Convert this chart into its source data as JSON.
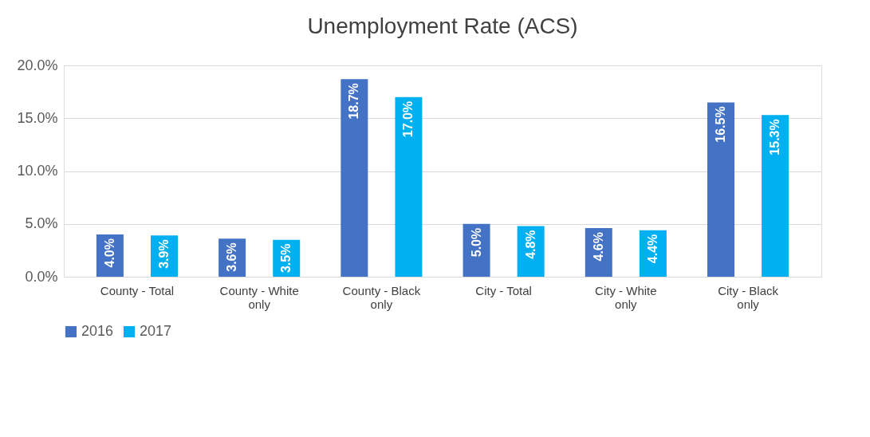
{
  "chart_data": {
    "type": "bar",
    "title": "Unemployment Rate (ACS)",
    "categories": [
      "County - Total",
      "County - White only",
      "County - Black only",
      "City - Total",
      "City - White only",
      "City - Black only"
    ],
    "series": [
      {
        "name": "2016",
        "color": "#4472c4",
        "values": [
          4.0,
          3.6,
          18.7,
          5.0,
          4.6,
          16.5
        ],
        "value_labels": [
          "4.0%",
          "3.6%",
          "18.7%",
          "5.0%",
          "4.6%",
          "16.5%"
        ]
      },
      {
        "name": "2017",
        "color": "#00b0f0",
        "values": [
          3.9,
          3.5,
          17.0,
          4.8,
          4.4,
          15.3
        ],
        "value_labels": [
          "3.9%",
          "3.5%",
          "17.0%",
          "4.8%",
          "4.4%",
          "15.3%"
        ]
      }
    ],
    "ylim": [
      0,
      20
    ],
    "yticks": [
      {
        "value": 0,
        "label": "0.0%"
      },
      {
        "value": 5,
        "label": "5.0%"
      },
      {
        "value": 10,
        "label": "10.0%"
      },
      {
        "value": 15,
        "label": "15.0%"
      },
      {
        "value": 20,
        "label": "20.0%"
      }
    ],
    "grid": "y",
    "legend": "bottom"
  }
}
